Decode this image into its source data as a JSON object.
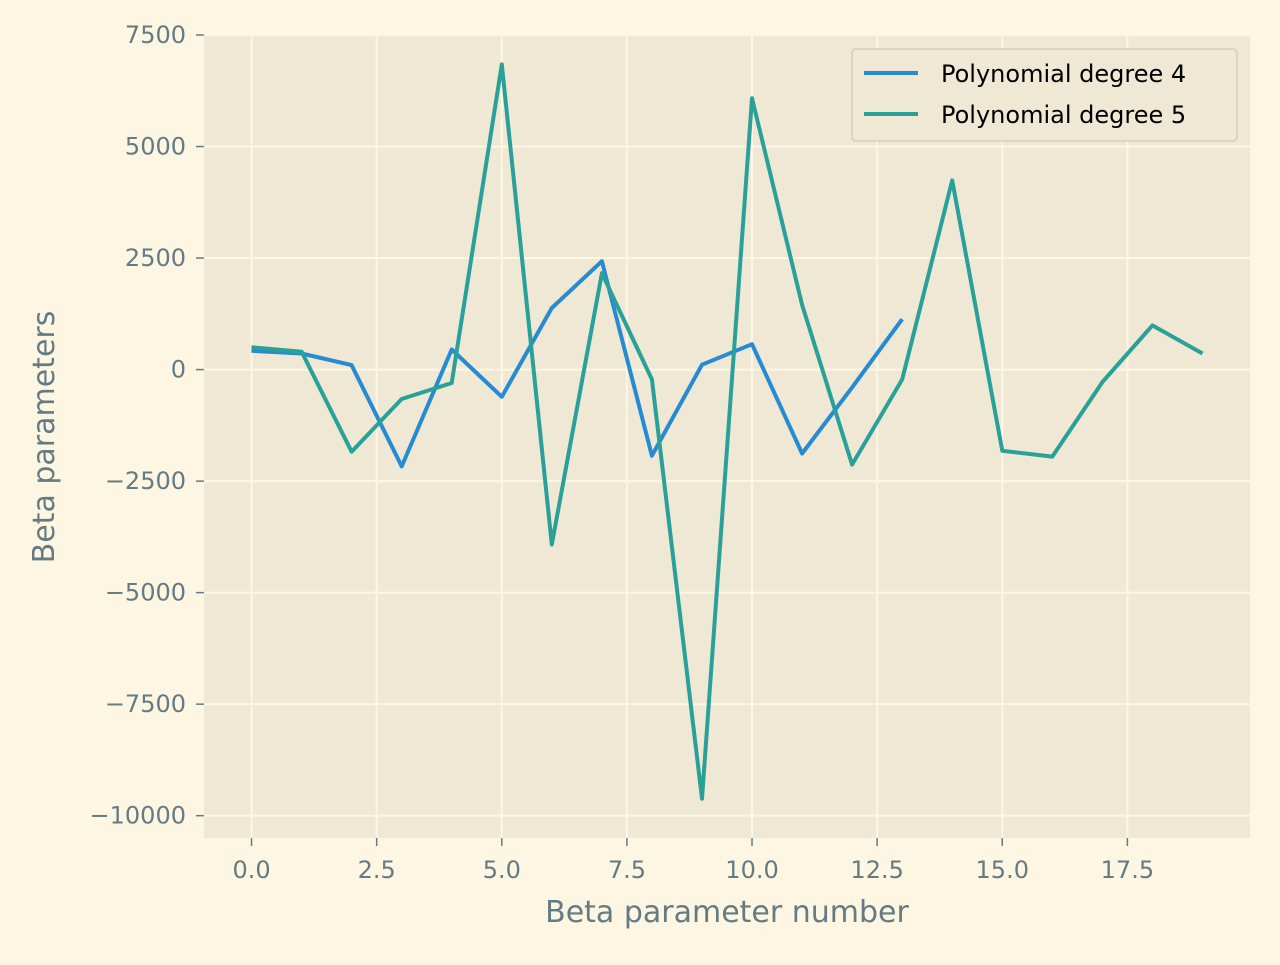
{
  "chart_data": {
    "type": "line",
    "title": "",
    "xlabel": "Beta parameter number",
    "ylabel": "Beta parameters",
    "xlim": [
      -0.95,
      19.95
    ],
    "ylim": [
      -10500,
      7500
    ],
    "xticks": [
      0.0,
      2.5,
      5.0,
      7.5,
      10.0,
      12.5,
      15.0,
      17.5
    ],
    "xtick_labels": [
      "0.0",
      "2.5",
      "5.0",
      "7.5",
      "10.0",
      "12.5",
      "15.0",
      "17.5"
    ],
    "yticks": [
      7500,
      5000,
      2500,
      0,
      -2500,
      -5000,
      -7500,
      -10000
    ],
    "ytick_labels": [
      "7500",
      "5000",
      "2500",
      "0",
      "−2500",
      "−5000",
      "−7500",
      "−10000"
    ],
    "grid": true,
    "legend_position": "top-right",
    "series": [
      {
        "name": "Polynomial degree 4",
        "color": "#268bd2",
        "x": [
          0,
          1,
          2,
          3,
          4,
          5,
          6,
          7,
          8,
          9,
          10,
          11,
          12,
          13
        ],
        "values": [
          420,
          360,
          100,
          -2170,
          450,
          -610,
          1380,
          2430,
          -1930,
          110,
          570,
          -1880,
          -400,
          1130
        ]
      },
      {
        "name": "Polynomial degree 5",
        "color": "#2aa198",
        "x": [
          0,
          1,
          2,
          3,
          4,
          5,
          6,
          7,
          8,
          9,
          10,
          11,
          12,
          13,
          14,
          15,
          16,
          17,
          18,
          19
        ],
        "values": [
          500,
          400,
          -1840,
          -660,
          -300,
          6840,
          -3920,
          2160,
          -220,
          -9620,
          6080,
          1450,
          -2130,
          -220,
          4240,
          -1820,
          -1950,
          -280,
          990,
          360
        ]
      }
    ]
  },
  "colors": {
    "figure_bg": "#fdf6e3",
    "axes_bg": "#eee8d5",
    "grid": "#fdf6e3",
    "text": "#657b83"
  }
}
